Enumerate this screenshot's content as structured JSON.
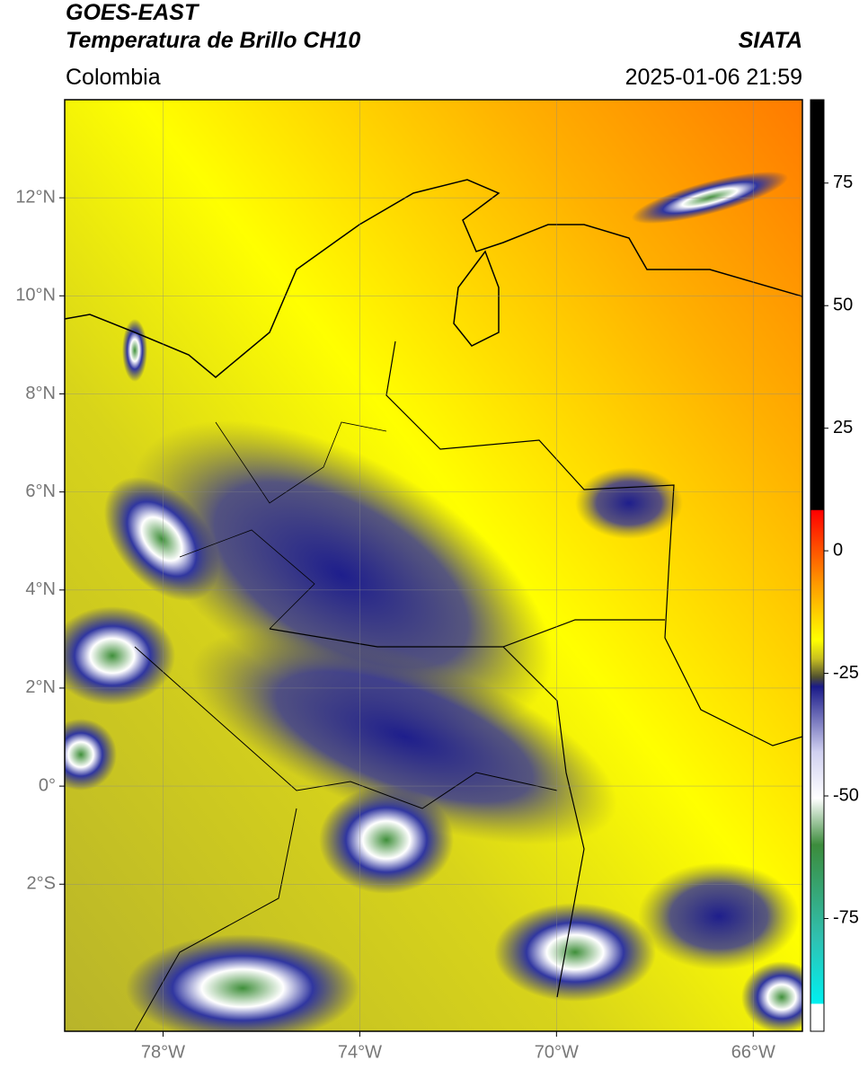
{
  "header": {
    "satellite": "GOES-EAST",
    "product": "Temperatura de Brillo CH10",
    "agency": "SIATA",
    "region": "Colombia",
    "datetime": "2025-01-06 21:59"
  },
  "map": {
    "xlim": [
      -80,
      -65
    ],
    "ylim": [
      -5,
      14
    ],
    "xticks": [
      {
        "value": -78,
        "label": "78°W"
      },
      {
        "value": -74,
        "label": "74°W"
      },
      {
        "value": -70,
        "label": "70°W"
      },
      {
        "value": -66,
        "label": "66°W"
      }
    ],
    "yticks": [
      {
        "value": 12,
        "label": "12°N"
      },
      {
        "value": 10,
        "label": "10°N"
      },
      {
        "value": 8,
        "label": "8°N"
      },
      {
        "value": 6,
        "label": "6°N"
      },
      {
        "value": 4,
        "label": "4°N"
      },
      {
        "value": 2,
        "label": "2°N"
      },
      {
        "value": 0,
        "label": "0°"
      },
      {
        "value": -2,
        "label": "2°S"
      }
    ],
    "grid": true
  },
  "colorbar": {
    "lim": [
      -98,
      92
    ],
    "ticks": [
      75,
      50,
      25,
      0,
      -25,
      -50,
      -75
    ]
  }
}
